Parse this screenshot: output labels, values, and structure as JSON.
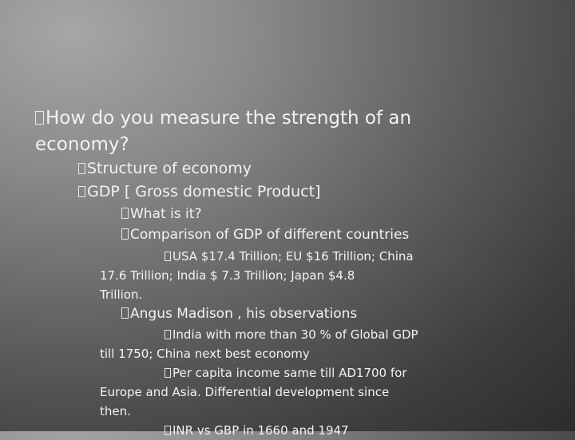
{
  "slide": {
    "lines": [
      {
        "id": "q1",
        "text": "How do you measure the strength of an"
      },
      {
        "id": "q2",
        "text": "economy?"
      },
      {
        "id": "a1",
        "text": "Structure of economy"
      },
      {
        "id": "a2",
        "text": "GDP [ Gross domestic Product]"
      },
      {
        "id": "b1",
        "text": "What is it?"
      },
      {
        "id": "b2",
        "text": "Comparison of GDP of different countries"
      },
      {
        "id": "c1a",
        "text": "USA  $17.4 Trillion;  EU  $16 Trillion; China"
      },
      {
        "id": "c1b",
        "text": "17.6 Trillion;  India $ 7.3 Trillion; Japan  $4.8"
      },
      {
        "id": "c1c",
        "text": "Trillion."
      },
      {
        "id": "b3",
        "text": "Angus Madison , his observations"
      },
      {
        "id": "c2a",
        "text": "India  with  more than 30 % of Global GDP"
      },
      {
        "id": "c2b",
        "text": "till 1750; China next best economy"
      },
      {
        "id": "c3a",
        "text": "Per capita income  same till AD1700  for"
      },
      {
        "id": "c3b",
        "text": "Europe and Asia. Differential development since"
      },
      {
        "id": "c3c",
        "text": "then."
      },
      {
        "id": "c4a",
        "text": "INR  vs  GBP  in 1660 and 1947"
      }
    ]
  }
}
